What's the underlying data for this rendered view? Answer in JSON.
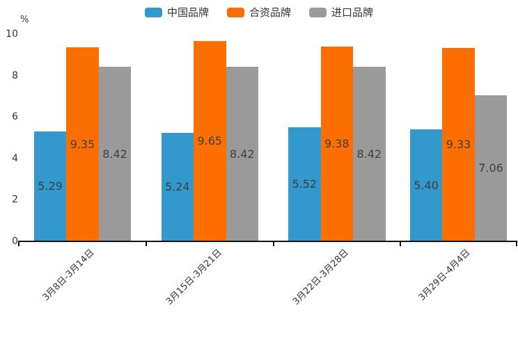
{
  "chart_data": {
    "type": "bar",
    "title": "",
    "xlabel": "",
    "ylabel": "%",
    "ylim": [
      0,
      10
    ],
    "yticks": [
      0,
      2,
      4,
      6,
      8,
      10
    ],
    "grid": false,
    "legend_position": "top-center",
    "categories": [
      "3月8日-3月14日",
      "3月15日-3月21日",
      "3月22日-3月28日",
      "3月29日-4月4日"
    ],
    "series": [
      {
        "name": "中国品牌",
        "color": "#3398cb",
        "values": [
          5.29,
          5.24,
          5.52,
          5.4
        ]
      },
      {
        "name": "合资品牌",
        "color": "#fc6e00",
        "values": [
          9.35,
          9.65,
          9.38,
          9.33
        ]
      },
      {
        "name": "进口品牌",
        "color": "#9a9a9a",
        "values": [
          8.42,
          8.42,
          8.42,
          7.06
        ]
      }
    ],
    "value_label_decimals": 2,
    "axis_color": "#111111",
    "text_color": "#333333",
    "bar_label_color": "#404040"
  }
}
